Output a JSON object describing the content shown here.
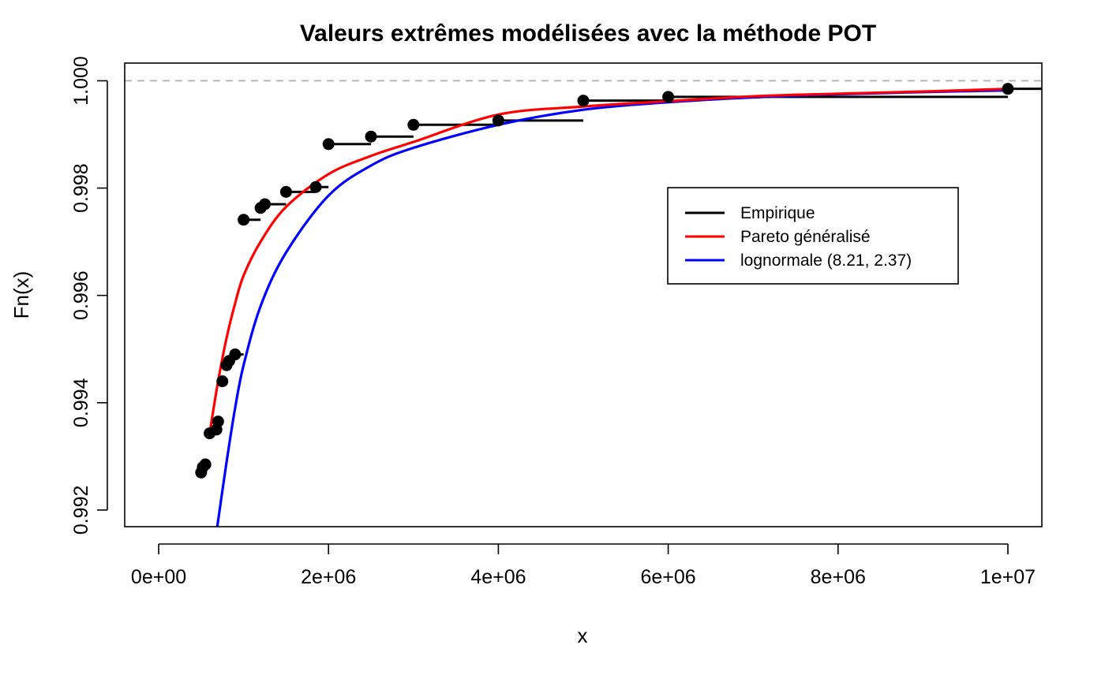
{
  "chart_data": {
    "type": "line",
    "title": "Valeurs extrêmes modélisées avec la méthode POT",
    "xlabel": "x",
    "ylabel": "Fn(x)",
    "xlim": [
      -400000,
      10400000
    ],
    "ylim": [
      0.99169,
      1.00033
    ],
    "x_ticks": [
      0,
      2000000,
      4000000,
      6000000,
      8000000,
      10000000
    ],
    "x_tick_labels": [
      "0e+00",
      "2e+06",
      "4e+06",
      "6e+06",
      "8e+06",
      "1e+07"
    ],
    "y_ticks": [
      0.992,
      0.994,
      0.996,
      0.998,
      1.0
    ],
    "y_tick_labels": [
      "0.992",
      "0.994",
      "0.996",
      "0.998",
      "1.000"
    ],
    "reference_line": {
      "y": 1.0,
      "style": "dashed",
      "color": "#b3b3b3"
    },
    "legend": {
      "position": "right",
      "entries": [
        {
          "label": "Empirique",
          "color": "#000000"
        },
        {
          "label": "Pareto généralisé",
          "color": "#ff0000"
        },
        {
          "label": "lognormale (8.21, 2.37)",
          "color": "#0000ff"
        }
      ]
    },
    "series": [
      {
        "name": "Empirique",
        "kind": "step",
        "color": "#000000",
        "points": [
          [
            500000,
            0.9927
          ],
          [
            520000,
            0.9928
          ],
          [
            550000,
            0.99285
          ],
          [
            600000,
            0.99343
          ],
          [
            680000,
            0.9935
          ],
          [
            700000,
            0.99365
          ],
          [
            750000,
            0.9944
          ],
          [
            800000,
            0.9947
          ],
          [
            830000,
            0.99478
          ],
          [
            900000,
            0.9949
          ],
          [
            1000000,
            0.99741
          ],
          [
            1200000,
            0.99763
          ],
          [
            1250000,
            0.9977
          ],
          [
            1500000,
            0.99793
          ],
          [
            1850000,
            0.99802
          ],
          [
            2000000,
            0.99882
          ],
          [
            2500000,
            0.99896
          ],
          [
            3000000,
            0.99918
          ],
          [
            4000000,
            0.99926
          ],
          [
            5000000,
            0.99963
          ],
          [
            6000000,
            0.9997
          ],
          [
            10000000,
            0.99985
          ]
        ],
        "last_step_end": 10500000
      },
      {
        "name": "Pareto généralisé",
        "kind": "curve",
        "color": "#ff0000",
        "points": [
          [
            600000,
            0.99343
          ],
          [
            700000,
            0.9944
          ],
          [
            800000,
            0.99521
          ],
          [
            900000,
            0.99585
          ],
          [
            1000000,
            0.99637
          ],
          [
            1200000,
            0.997
          ],
          [
            1500000,
            0.99765
          ],
          [
            2000000,
            0.99826
          ],
          [
            2500000,
            0.9986
          ],
          [
            3000000,
            0.99886
          ],
          [
            4000000,
            0.99937
          ],
          [
            5000000,
            0.99952
          ],
          [
            6000000,
            0.99962
          ],
          [
            7000000,
            0.99971
          ],
          [
            8000000,
            0.99976
          ],
          [
            9000000,
            0.9998
          ],
          [
            10000000,
            0.99985
          ]
        ]
      },
      {
        "name": "lognormale (8.21, 2.37)",
        "kind": "curve",
        "color": "#0000ff",
        "points": [
          [
            690000,
            0.99169
          ],
          [
            800000,
            0.9929
          ],
          [
            900000,
            0.9939
          ],
          [
            1000000,
            0.9947
          ],
          [
            1200000,
            0.9958
          ],
          [
            1500000,
            0.9968
          ],
          [
            2000000,
            0.99786
          ],
          [
            2500000,
            0.99842
          ],
          [
            3000000,
            0.99875
          ],
          [
            4000000,
            0.99918
          ],
          [
            5000000,
            0.99946
          ],
          [
            6000000,
            0.9996
          ],
          [
            7000000,
            0.99969
          ],
          [
            8000000,
            0.99975
          ],
          [
            9000000,
            0.99979
          ],
          [
            10000000,
            0.99982
          ]
        ]
      }
    ]
  }
}
